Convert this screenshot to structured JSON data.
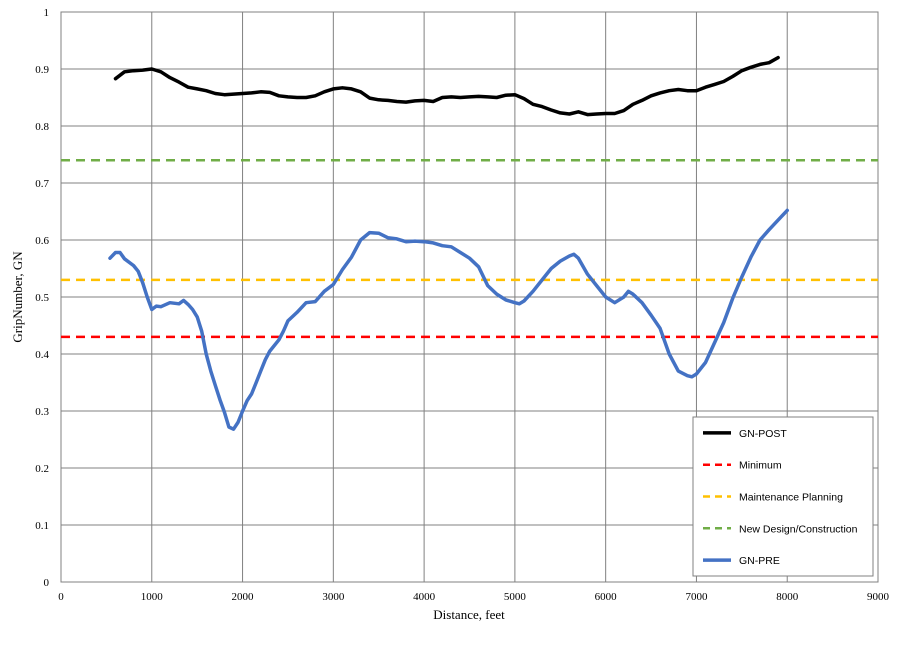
{
  "chart_data": {
    "type": "line",
    "xlabel": "Distance, feet",
    "ylabel": "GripNumber, GN",
    "xlim": [
      0,
      9000
    ],
    "ylim": [
      0,
      1
    ],
    "x_ticks": [
      "0",
      "1000",
      "2000",
      "3000",
      "4000",
      "5000",
      "6000",
      "7000",
      "8000",
      "9000"
    ],
    "y_ticks": [
      "0",
      "0.1",
      "0.2",
      "0.3",
      "0.4",
      "0.5",
      "0.6",
      "0.7",
      "0.8",
      "0.9",
      "1"
    ],
    "grid": "major x and y",
    "legend_position": "bottom-right",
    "series": [
      {
        "name": "GN-POST",
        "color": "#000000",
        "style": "solid",
        "points": [
          [
            600,
            0.883
          ],
          [
            700,
            0.895
          ],
          [
            800,
            0.897
          ],
          [
            900,
            0.898
          ],
          [
            1000,
            0.9
          ],
          [
            1100,
            0.895
          ],
          [
            1200,
            0.885
          ],
          [
            1300,
            0.877
          ],
          [
            1400,
            0.868
          ],
          [
            1500,
            0.865
          ],
          [
            1600,
            0.862
          ],
          [
            1700,
            0.857
          ],
          [
            1800,
            0.855
          ],
          [
            1900,
            0.856
          ],
          [
            2000,
            0.857
          ],
          [
            2100,
            0.858
          ],
          [
            2200,
            0.86
          ],
          [
            2300,
            0.859
          ],
          [
            2400,
            0.853
          ],
          [
            2500,
            0.851
          ],
          [
            2600,
            0.85
          ],
          [
            2700,
            0.85
          ],
          [
            2800,
            0.853
          ],
          [
            2900,
            0.86
          ],
          [
            3000,
            0.865
          ],
          [
            3100,
            0.867
          ],
          [
            3200,
            0.865
          ],
          [
            3300,
            0.86
          ],
          [
            3400,
            0.849
          ],
          [
            3500,
            0.846
          ],
          [
            3600,
            0.845
          ],
          [
            3700,
            0.843
          ],
          [
            3800,
            0.842
          ],
          [
            3900,
            0.844
          ],
          [
            4000,
            0.845
          ],
          [
            4100,
            0.843
          ],
          [
            4200,
            0.85
          ],
          [
            4300,
            0.851
          ],
          [
            4400,
            0.85
          ],
          [
            4500,
            0.851
          ],
          [
            4600,
            0.852
          ],
          [
            4700,
            0.851
          ],
          [
            4800,
            0.85
          ],
          [
            4900,
            0.854
          ],
          [
            5000,
            0.855
          ],
          [
            5100,
            0.848
          ],
          [
            5200,
            0.838
          ],
          [
            5300,
            0.834
          ],
          [
            5400,
            0.828
          ],
          [
            5500,
            0.823
          ],
          [
            5600,
            0.821
          ],
          [
            5700,
            0.825
          ],
          [
            5800,
            0.82
          ],
          [
            5900,
            0.821
          ],
          [
            6000,
            0.822
          ],
          [
            6100,
            0.822
          ],
          [
            6200,
            0.827
          ],
          [
            6300,
            0.838
          ],
          [
            6400,
            0.845
          ],
          [
            6500,
            0.853
          ],
          [
            6600,
            0.858
          ],
          [
            6700,
            0.862
          ],
          [
            6800,
            0.864
          ],
          [
            6900,
            0.862
          ],
          [
            7000,
            0.862
          ],
          [
            7100,
            0.868
          ],
          [
            7200,
            0.873
          ],
          [
            7300,
            0.878
          ],
          [
            7400,
            0.887
          ],
          [
            7500,
            0.897
          ],
          [
            7600,
            0.903
          ],
          [
            7700,
            0.908
          ],
          [
            7800,
            0.911
          ],
          [
            7900,
            0.92
          ]
        ]
      },
      {
        "name": "Minimum",
        "color": "#ff0000",
        "style": "dashed",
        "points": [
          [
            0,
            0.43
          ],
          [
            9000,
            0.43
          ]
        ]
      },
      {
        "name": "Maintenance Planning",
        "color": "#ffc000",
        "style": "dashed",
        "points": [
          [
            0,
            0.53
          ],
          [
            9000,
            0.53
          ]
        ]
      },
      {
        "name": "New Design/Construction",
        "color": "#70ad47",
        "style": "dashed",
        "points": [
          [
            0,
            0.74
          ],
          [
            9000,
            0.74
          ]
        ]
      },
      {
        "name": "GN-PRE",
        "color": "#4472c4",
        "style": "solid",
        "points": [
          [
            540,
            0.568
          ],
          [
            600,
            0.578
          ],
          [
            650,
            0.578
          ],
          [
            700,
            0.567
          ],
          [
            800,
            0.555
          ],
          [
            850,
            0.545
          ],
          [
            900,
            0.525
          ],
          [
            950,
            0.5
          ],
          [
            1000,
            0.478
          ],
          [
            1050,
            0.484
          ],
          [
            1100,
            0.483
          ],
          [
            1200,
            0.49
          ],
          [
            1300,
            0.488
          ],
          [
            1350,
            0.494
          ],
          [
            1400,
            0.487
          ],
          [
            1450,
            0.478
          ],
          [
            1500,
            0.465
          ],
          [
            1550,
            0.44
          ],
          [
            1600,
            0.4
          ],
          [
            1650,
            0.37
          ],
          [
            1700,
            0.345
          ],
          [
            1750,
            0.32
          ],
          [
            1800,
            0.298
          ],
          [
            1850,
            0.272
          ],
          [
            1900,
            0.268
          ],
          [
            1950,
            0.28
          ],
          [
            2000,
            0.3
          ],
          [
            2050,
            0.318
          ],
          [
            2100,
            0.33
          ],
          [
            2150,
            0.35
          ],
          [
            2200,
            0.37
          ],
          [
            2250,
            0.39
          ],
          [
            2300,
            0.405
          ],
          [
            2400,
            0.425
          ],
          [
            2450,
            0.44
          ],
          [
            2500,
            0.458
          ],
          [
            2600,
            0.473
          ],
          [
            2700,
            0.49
          ],
          [
            2800,
            0.492
          ],
          [
            2900,
            0.51
          ],
          [
            3000,
            0.522
          ],
          [
            3100,
            0.548
          ],
          [
            3200,
            0.57
          ],
          [
            3300,
            0.6
          ],
          [
            3400,
            0.613
          ],
          [
            3500,
            0.612
          ],
          [
            3600,
            0.604
          ],
          [
            3700,
            0.602
          ],
          [
            3800,
            0.597
          ],
          [
            3900,
            0.598
          ],
          [
            4000,
            0.597
          ],
          [
            4100,
            0.595
          ],
          [
            4200,
            0.59
          ],
          [
            4300,
            0.588
          ],
          [
            4400,
            0.578
          ],
          [
            4500,
            0.568
          ],
          [
            4600,
            0.553
          ],
          [
            4700,
            0.52
          ],
          [
            4800,
            0.505
          ],
          [
            4900,
            0.495
          ],
          [
            5000,
            0.49
          ],
          [
            5050,
            0.488
          ],
          [
            5100,
            0.493
          ],
          [
            5200,
            0.51
          ],
          [
            5300,
            0.53
          ],
          [
            5400,
            0.55
          ],
          [
            5500,
            0.563
          ],
          [
            5600,
            0.572
          ],
          [
            5650,
            0.575
          ],
          [
            5700,
            0.568
          ],
          [
            5800,
            0.54
          ],
          [
            5900,
            0.52
          ],
          [
            6000,
            0.5
          ],
          [
            6100,
            0.49
          ],
          [
            6200,
            0.5
          ],
          [
            6250,
            0.51
          ],
          [
            6300,
            0.505
          ],
          [
            6400,
            0.49
          ],
          [
            6500,
            0.468
          ],
          [
            6600,
            0.445
          ],
          [
            6700,
            0.4
          ],
          [
            6800,
            0.37
          ],
          [
            6900,
            0.362
          ],
          [
            6950,
            0.36
          ],
          [
            7000,
            0.365
          ],
          [
            7100,
            0.385
          ],
          [
            7200,
            0.42
          ],
          [
            7300,
            0.455
          ],
          [
            7400,
            0.498
          ],
          [
            7500,
            0.535
          ],
          [
            7600,
            0.57
          ],
          [
            7700,
            0.6
          ],
          [
            7800,
            0.618
          ],
          [
            7900,
            0.635
          ],
          [
            8000,
            0.652
          ]
        ]
      }
    ]
  }
}
